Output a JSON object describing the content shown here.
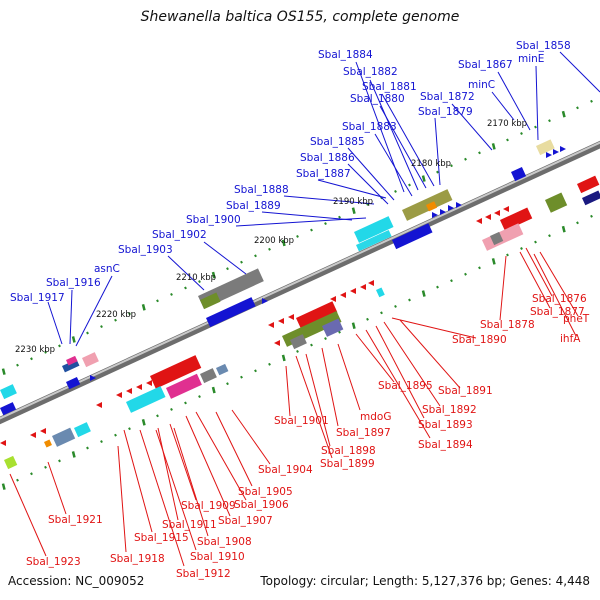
{
  "title": "Shewanella baltica OS155, complete genome",
  "footer": {
    "accession": "Accession: NC_009052",
    "summary": "Topology: circular; Length: 5,127,376 bp; Genes: 4,448"
  },
  "colors": {
    "forward": "#1414d2",
    "reverse": "#e01414",
    "backbone": "#8a8a8a",
    "ticks": "#2a8a2a"
  },
  "scale_labels": [
    "2170 kbp",
    "2180 kbp",
    "2190 kbp",
    "2200 kbp",
    "2210 kbp",
    "2220 kbp",
    "2230 kbp"
  ],
  "forward_genes": [
    "Sbal_1858",
    "minE",
    "Sbal_1867",
    "minC",
    "Sbal_1872",
    "Sbal_1879",
    "Sbal_1880",
    "Sbal_1881",
    "Sbal_1882",
    "Sbal_1884",
    "Sbal_1883",
    "Sbal_1885",
    "Sbal_1886",
    "Sbal_1887",
    "Sbal_1888",
    "Sbal_1889",
    "Sbal_1900",
    "Sbal_1902",
    "Sbal_1903",
    "asnC",
    "Sbal_1916",
    "Sbal_1917"
  ],
  "reverse_genes": [
    "Sbal_1876",
    "pheT",
    "Sbal_1877",
    "Sbal_1878",
    "ihfA",
    "Sbal_1890",
    "Sbal_1891",
    "Sbal_1892",
    "Sbal_1893",
    "Sbal_1894",
    "Sbal_1895",
    "mdoG",
    "Sbal_1897",
    "Sbal_1898",
    "Sbal_1899",
    "Sbal_1901",
    "Sbal_1904",
    "Sbal_1905",
    "Sbal_1906",
    "Sbal_1907",
    "Sbal_1909",
    "Sbal_1908",
    "Sbal_1911",
    "Sbal_1910",
    "Sbal_1912",
    "Sbal_1915",
    "Sbal_1918",
    "Sbal_1921",
    "Sbal_1923"
  ]
}
